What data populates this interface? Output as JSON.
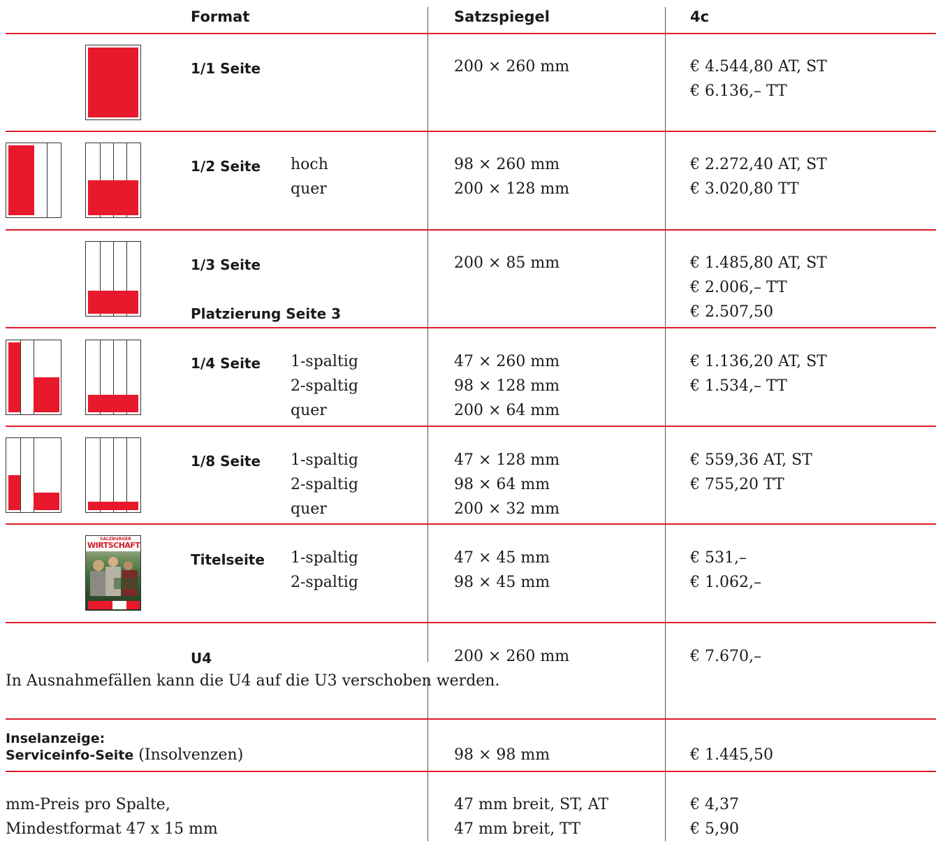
{
  "header": {
    "format": "Format",
    "satzspiegel": "Satzspiegel",
    "color": "4c"
  },
  "rows": {
    "r1": {
      "label": "1/1 Seite",
      "size": "200 × 260 mm",
      "prices": [
        "€ 4.544,80 AT, ST",
        "€ 6.136,– TT"
      ]
    },
    "r2": {
      "label": "1/2 Seite",
      "variants": [
        "hoch",
        "quer"
      ],
      "sizes": [
        "98 × 260 mm",
        "200 × 128 mm"
      ],
      "prices": [
        "€ 2.272,40 AT, ST",
        "€ 3.020,80 TT"
      ]
    },
    "r3": {
      "label": "1/3 Seite",
      "size": "200 × 85 mm",
      "prices": [
        "€ 1.485,80 AT, ST",
        "€ 2.006,– TT"
      ],
      "placement_label": "Platzierung Seite 3",
      "placement_price": "€ 2.507,50"
    },
    "r4": {
      "label": "1/4 Seite",
      "variants": [
        "1-spaltig",
        "2-spaltig",
        "quer"
      ],
      "sizes": [
        "47 × 260 mm",
        "98 × 128 mm",
        "200 × 64 mm"
      ],
      "prices": [
        "€ 1.136,20 AT, ST",
        "€ 1.534,– TT"
      ]
    },
    "r5": {
      "label": "1/8 Seite",
      "variants": [
        "1-spaltig",
        "2-spaltig",
        "quer"
      ],
      "sizes": [
        "47 × 128 mm",
        "98 × 64 mm",
        "200 × 32 mm"
      ],
      "prices": [
        "€ 559,36 AT, ST",
        "€ 755,20 TT"
      ]
    },
    "r6": {
      "label": "Titelseite",
      "variants": [
        "1-spaltig",
        "2-spaltig"
      ],
      "sizes": [
        "47 × 45 mm",
        "98 × 45 mm"
      ],
      "prices": [
        "€ 531,–",
        "€ 1.062,–"
      ],
      "cover_masthead_small": "SALZBURGER",
      "cover_masthead": "WIRTSCHAFT"
    },
    "r7": {
      "label": "U4",
      "size": "200 × 260 mm",
      "price": "€ 7.670,–",
      "note": "In Ausnahmefällen kann die U4 auf die U3 verschoben werden."
    },
    "r8": {
      "label1": "Inselanzeige:",
      "label2": "Serviceinfo-Seite",
      "label2_suffix": "(Insolvenzen)",
      "size": "98 × 98 mm",
      "price": "€ 1.445,50"
    },
    "r9": {
      "lines": [
        "mm-Preis pro Spalte,",
        "Mindestformat 47 x 15 mm"
      ],
      "sizes": [
        "47 mm breit, ST, AT",
        "47 mm breit, TT"
      ],
      "prices": [
        "€ 4,37",
        "€ 5,90"
      ]
    }
  },
  "colors": {
    "accent": "#e8192c",
    "rule": "#e01b2c"
  }
}
